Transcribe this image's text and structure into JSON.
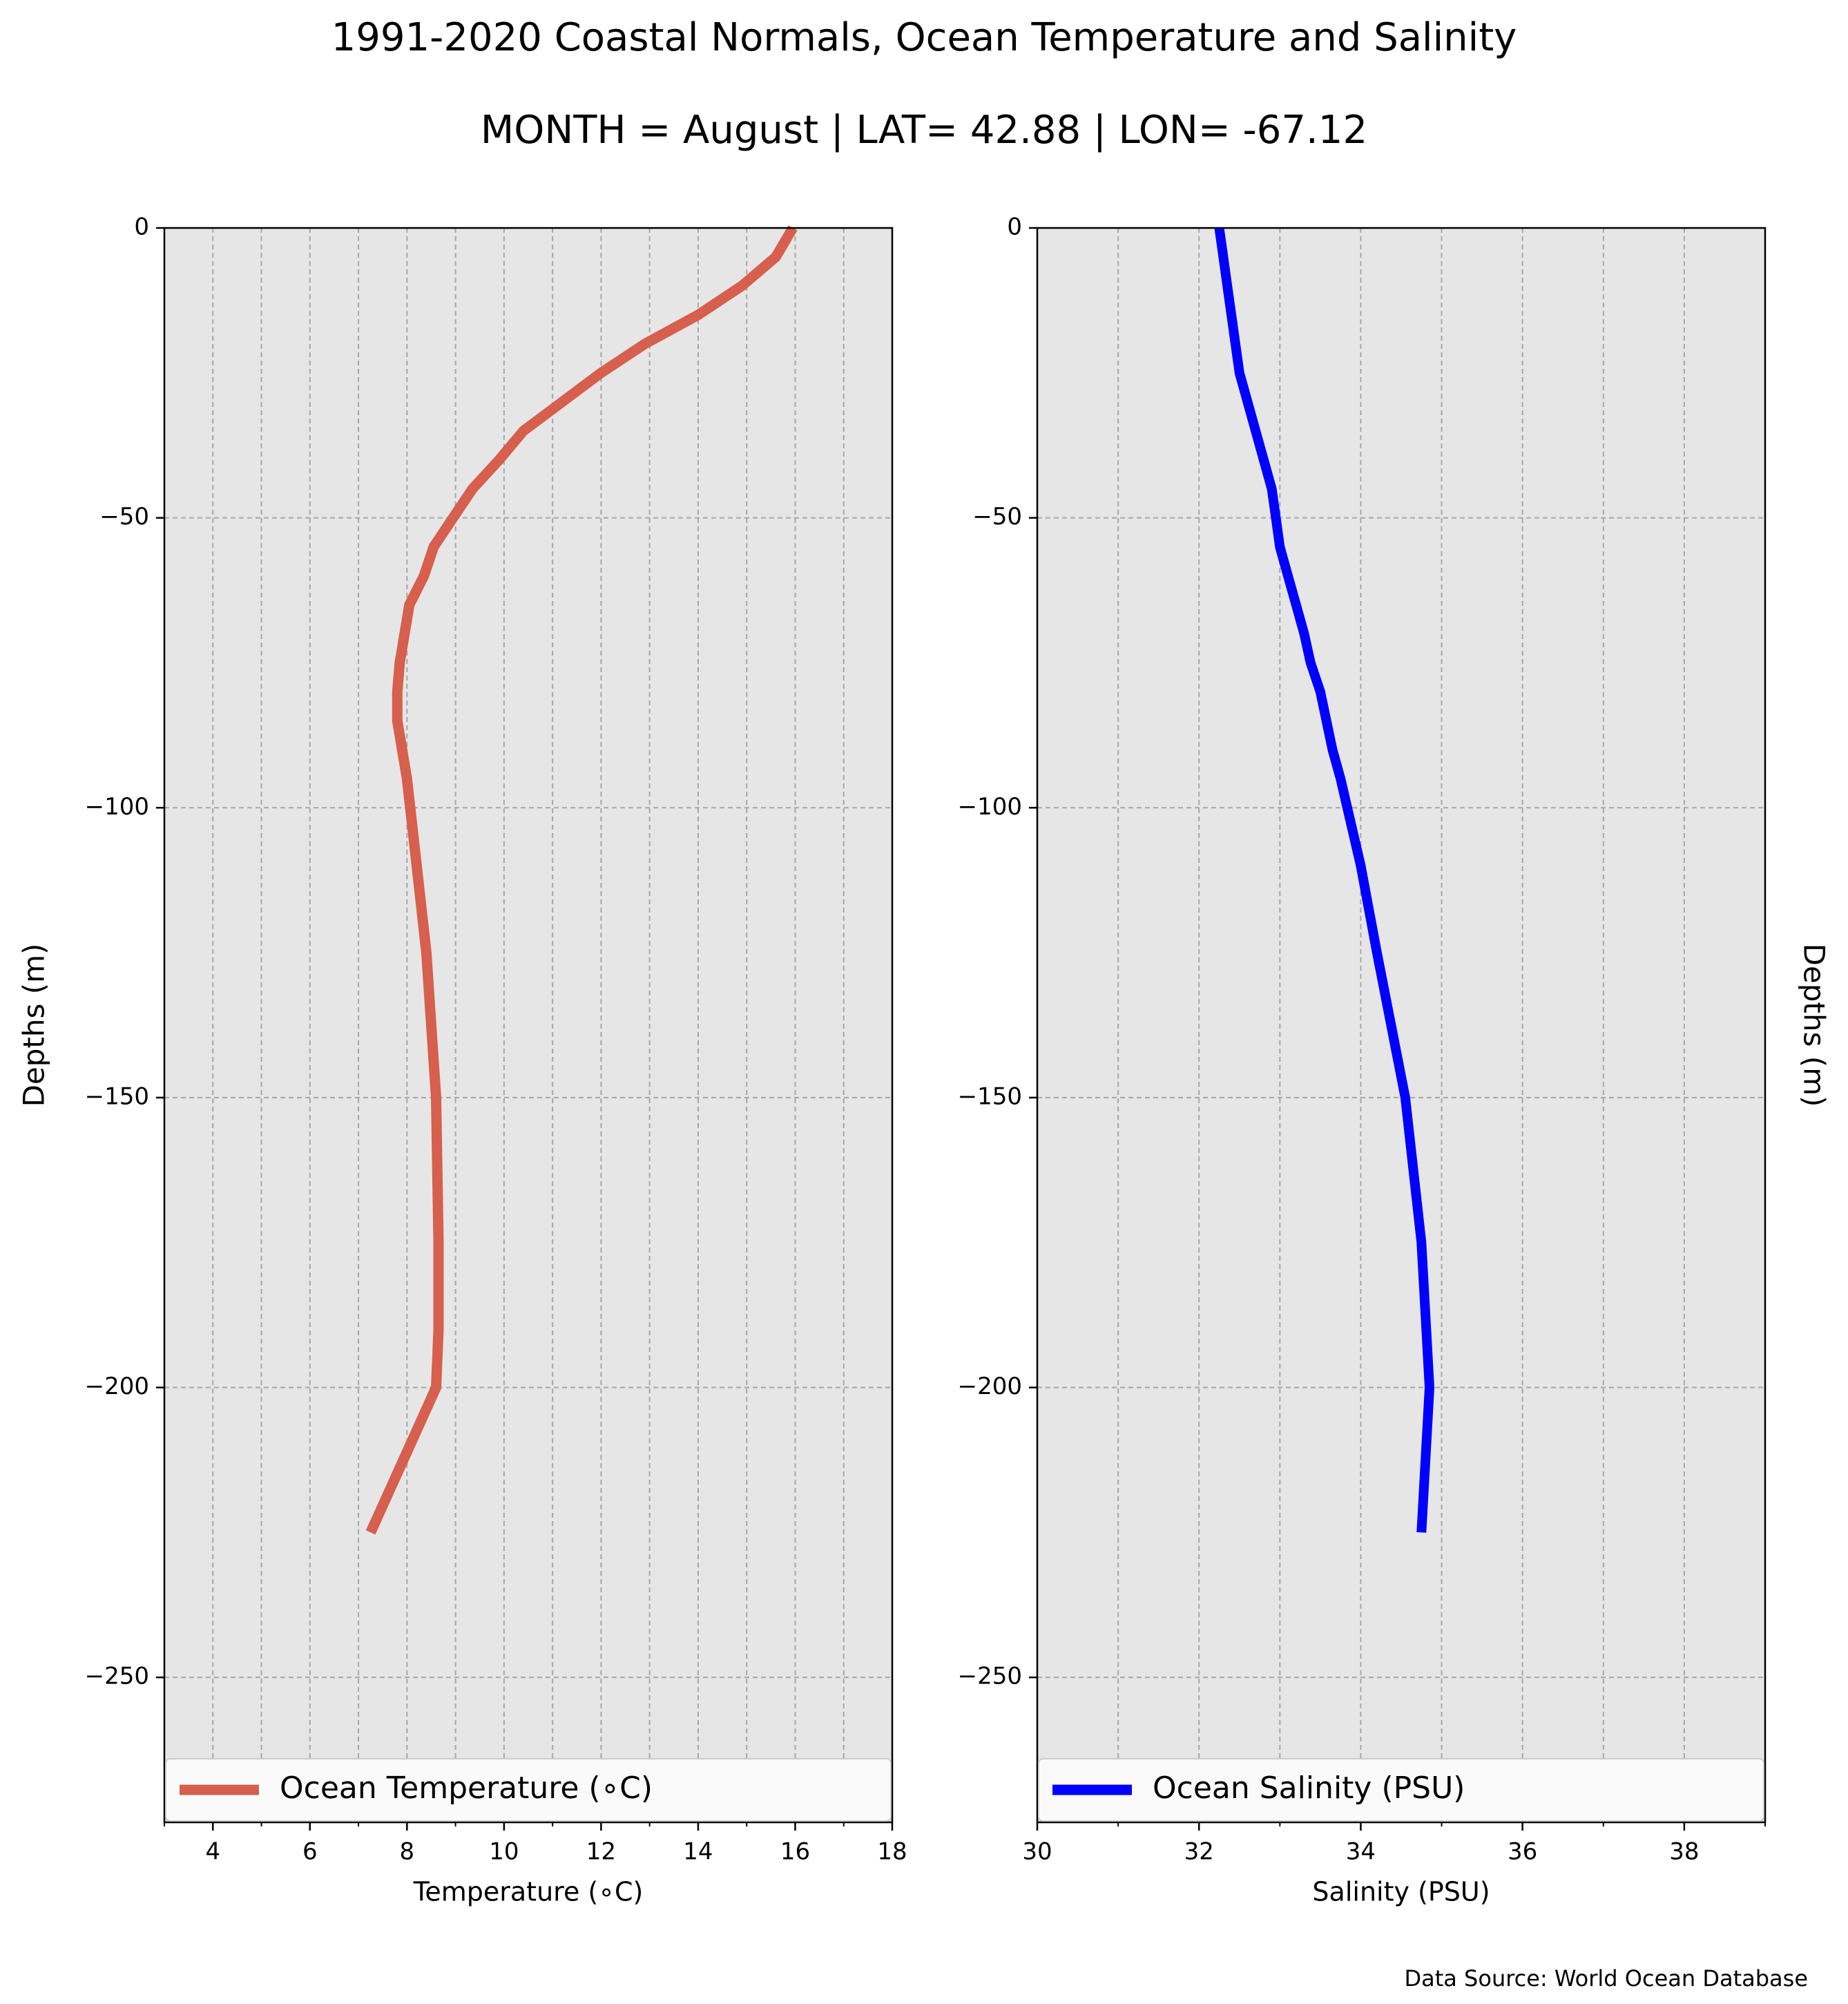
{
  "figure": {
    "title": "1991-2020 Coastal Normals, Ocean Temperature and Salinity",
    "subtitle": "MONTH = August | LAT= 42.88 | LON= -67.12",
    "source": "Data Source: World Ocean Database",
    "background": "#ffffff"
  },
  "chart_data": [
    {
      "type": "line",
      "orientation": "vertical-profile",
      "title": "",
      "xlabel": "Temperature ($^\\circ$C)",
      "xlabel_display": "Temperature (∘C)",
      "ylabel": "Depths (m)",
      "xlim": [
        3,
        18
      ],
      "ylim": [
        -275,
        0
      ],
      "xticks": [
        4,
        6,
        8,
        10,
        12,
        14,
        16,
        18
      ],
      "xtick_labels": [
        "4",
        "6",
        "8",
        "10",
        "12",
        "14",
        "16",
        "18"
      ],
      "minor_xticks": [
        3,
        5,
        7,
        9,
        11,
        13,
        15,
        17
      ],
      "yticks": [
        0,
        -50,
        -100,
        -150,
        -200,
        -250
      ],
      "ytick_labels": [
        "0",
        "−50",
        "−100",
        "−150",
        "−200",
        "−250"
      ],
      "grid": true,
      "legend_position": "lower-center",
      "background": "#e6e6e6",
      "series": [
        {
          "name": "Ocean Temperature (∘C)",
          "color": "#d65f4d",
          "x": [
            15.95,
            15.6,
            14.9,
            14.0,
            12.9,
            12.0,
            11.2,
            10.4,
            9.9,
            9.35,
            8.95,
            8.55,
            8.35,
            8.05,
            7.95,
            7.85,
            7.8,
            7.8,
            7.9,
            8.0,
            8.2,
            8.4,
            8.6,
            8.65,
            8.65,
            8.6,
            7.25
          ],
          "y": [
            0,
            -5,
            -10,
            -15,
            -20,
            -25,
            -30,
            -35,
            -40,
            -45,
            -50,
            -55,
            -60,
            -65,
            -70,
            -75,
            -80,
            -85,
            -90,
            -95,
            -110,
            -125,
            -150,
            -175,
            -190,
            -200,
            -225
          ]
        }
      ]
    },
    {
      "type": "line",
      "orientation": "vertical-profile",
      "title": "",
      "xlabel": "Salinity (PSU)",
      "ylabel": "Depths (m)",
      "xlim": [
        30,
        39
      ],
      "ylim": [
        -275,
        0
      ],
      "xticks": [
        30,
        32,
        34,
        36,
        38
      ],
      "xtick_labels": [
        "30",
        "32",
        "34",
        "36",
        "38"
      ],
      "minor_xticks": [
        31,
        33,
        35,
        37,
        39
      ],
      "yticks": [
        0,
        -50,
        -100,
        -150,
        -200,
        -250
      ],
      "ytick_labels": [
        "0",
        "−50",
        "−100",
        "−150",
        "−200",
        "−250"
      ],
      "ylabel_side": "right",
      "grid": true,
      "legend_position": "lower-center",
      "background": "#e6e6e6",
      "series": [
        {
          "name": "Ocean Salinity (PSU)",
          "color": "#0000ff",
          "x": [
            32.25,
            32.3,
            32.35,
            32.4,
            32.5,
            32.6,
            32.7,
            32.8,
            32.9,
            32.95,
            33.0,
            33.1,
            33.2,
            33.3,
            33.38,
            33.5,
            33.65,
            33.75,
            34.0,
            34.2,
            34.55,
            34.75,
            34.85,
            34.75
          ],
          "y": [
            0,
            -5,
            -10,
            -15,
            -25,
            -30,
            -35,
            -40,
            -45,
            -50,
            -55,
            -60,
            -65,
            -70,
            -75,
            -80,
            -90,
            -95,
            -110,
            -125,
            -150,
            -175,
            -200,
            -225
          ]
        }
      ]
    }
  ]
}
